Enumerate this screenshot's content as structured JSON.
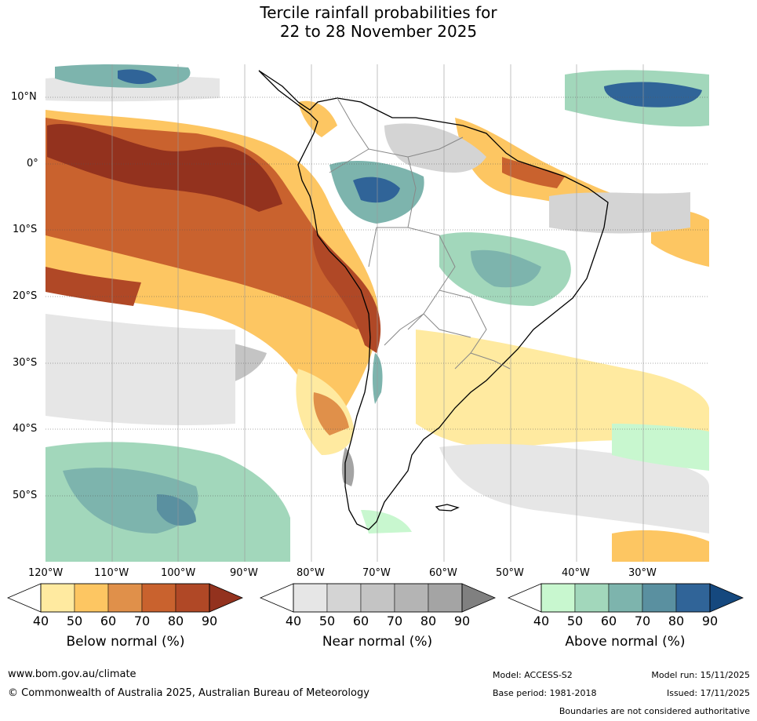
{
  "title": {
    "line1": "Tercile rainfall probabilities for",
    "line2": "22 to 28 November 2025"
  },
  "map": {
    "lat_labels": [
      "10°N",
      "0°",
      "10°S",
      "20°S",
      "30°S",
      "40°S",
      "50°S"
    ],
    "lon_labels": [
      "120°W",
      "110°W",
      "100°W",
      "90°W",
      "80°W",
      "70°W",
      "60°W",
      "50°W",
      "40°W",
      "30°W"
    ]
  },
  "colorbars": [
    {
      "label": "Below normal (%)",
      "ticks": [
        "40",
        "50",
        "60",
        "70",
        "80",
        "90"
      ],
      "colors": [
        "#ffeaa0",
        "#fdc662",
        "#e0904a",
        "#c9622e",
        "#b04826",
        "#93321e"
      ]
    },
    {
      "label": "Near normal (%)",
      "ticks": [
        "40",
        "50",
        "60",
        "70",
        "80",
        "90"
      ],
      "colors": [
        "#e6e6e6",
        "#d4d4d4",
        "#c4c4c4",
        "#b4b4b4",
        "#a4a4a4",
        "#808080"
      ]
    },
    {
      "label": "Above normal (%)",
      "ticks": [
        "40",
        "50",
        "60",
        "70",
        "80",
        "90"
      ],
      "colors": [
        "#c8f7cf",
        "#a2d7bb",
        "#7db4ad",
        "#5a90a0",
        "#306498",
        "#15487e"
      ]
    }
  ],
  "footer": {
    "url": "www.bom.gov.au/climate",
    "copyright": "© Commonwealth of Australia 2025, Australian Bureau of Meteorology",
    "model": "Model: ACCESS-S2",
    "base_period": "Base period: 1981-2018",
    "model_run": "Model run: 15/11/2025",
    "issued": "Issued: 17/11/2025",
    "disclaimer": "Boundaries are not considered authoritative"
  }
}
